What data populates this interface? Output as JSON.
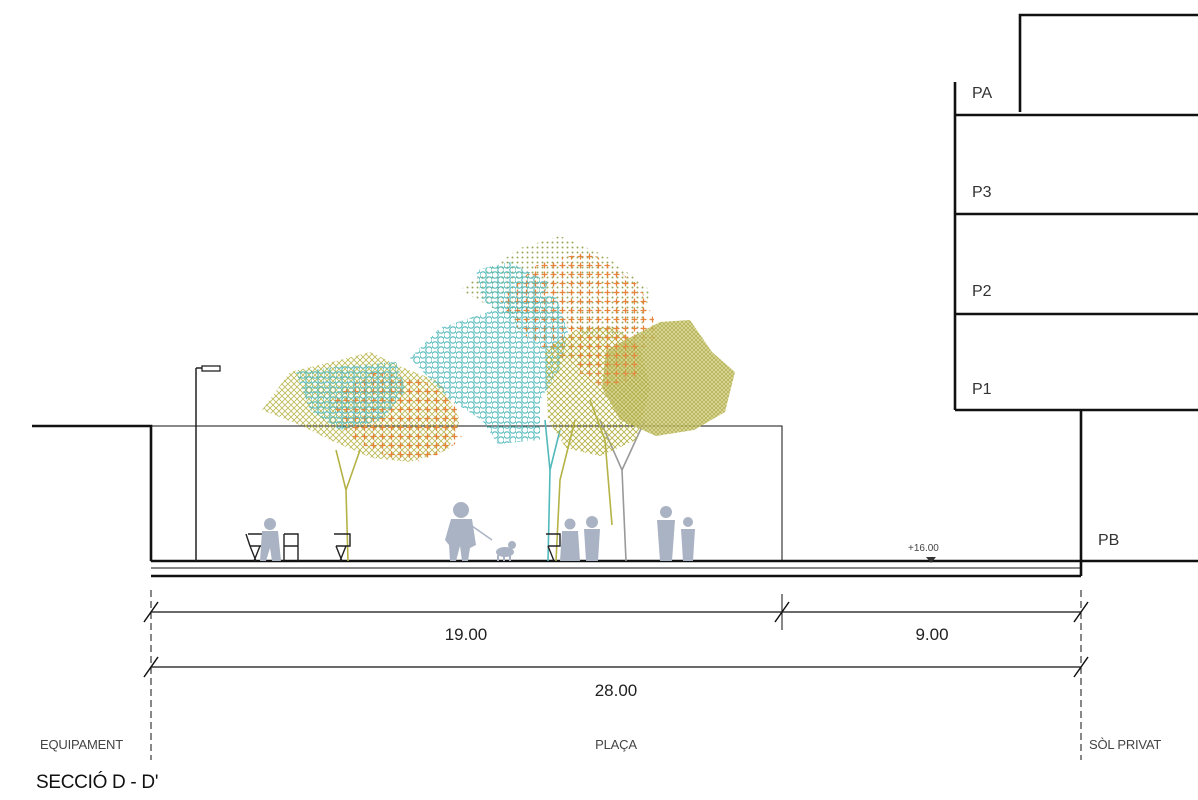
{
  "drawing": {
    "title": "SECCIÓ D - D'",
    "floors": [
      "PA",
      "P3",
      "P2",
      "P1",
      "PB"
    ],
    "dimensions": {
      "segment_1": "19.00",
      "segment_2": "9.00",
      "total": "28.00"
    },
    "level_mark": "+16.00",
    "zones": {
      "left": "EQUIPAMENT",
      "center": "PLAÇA",
      "right": "SÒL PRIVAT"
    }
  },
  "colors": {
    "line": "#111111",
    "figure": "#aab3c4",
    "canopy_teal": "#52b9bb",
    "canopy_orange": "#e8843a",
    "canopy_olive": "#b5b246",
    "trunk": "#999999"
  }
}
